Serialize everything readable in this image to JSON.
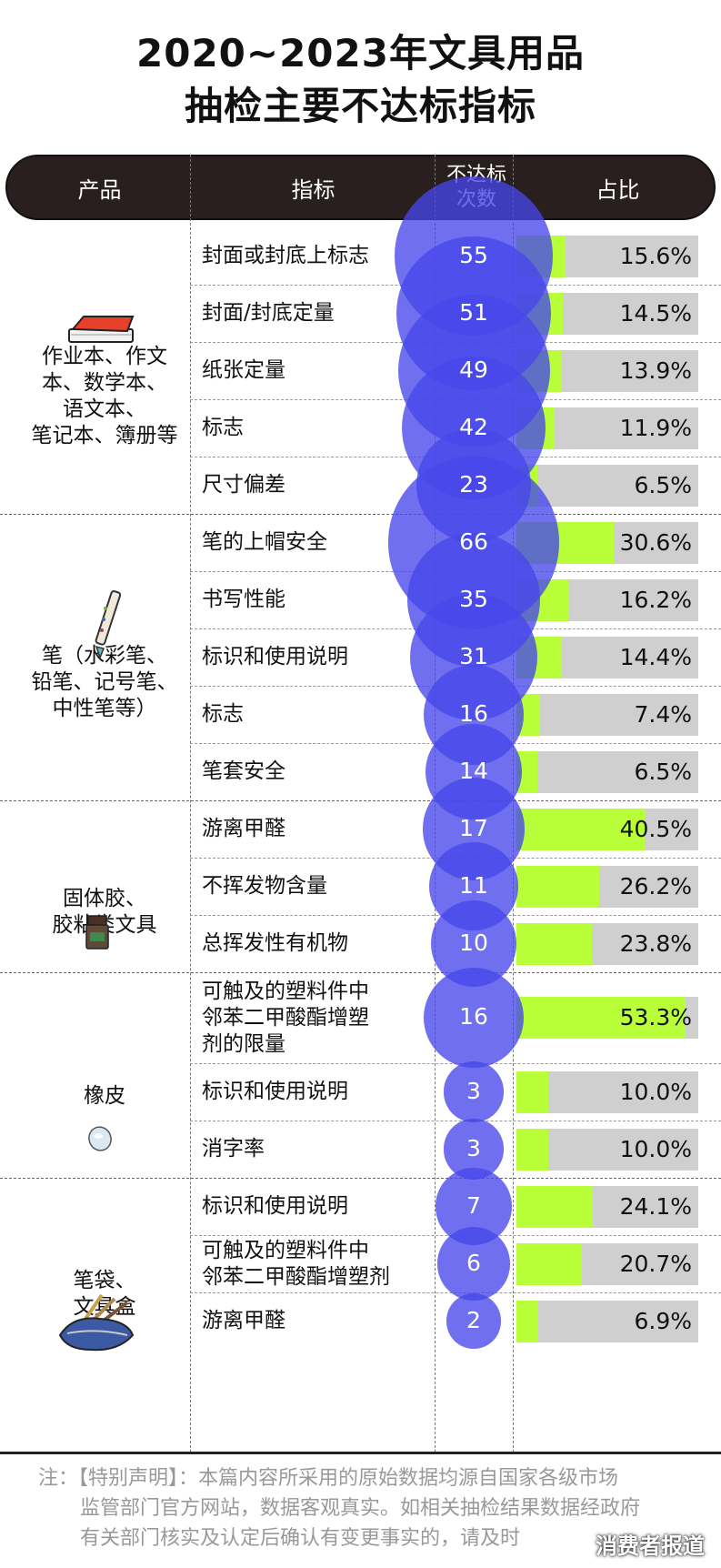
{
  "title": {
    "line1": "2020~2023年文具用品",
    "line2": "抽检主要不达标指标"
  },
  "header": {
    "product": "产品",
    "indicator": "指标",
    "count_line1": "不达标",
    "count_line2": "次数",
    "ratio": "占比"
  },
  "colors": {
    "header_bg": "#2a1f1f",
    "bubble": "#4646eb",
    "bar_fill": "#b8ff3a",
    "bar_bg": "#cfcfcf"
  },
  "chart_data": {
    "type": "table",
    "columns": [
      "产品",
      "指标",
      "不达标次数",
      "占比"
    ],
    "groups": [
      {
        "product": [
          "作业本、作文",
          "本、数学本、",
          "语文本、",
          "笔记本、簿册等"
        ],
        "icon": "notebook-icon",
        "rows": [
          {
            "indicator": [
              "封面或封底上标志"
            ],
            "count": 55,
            "ratio": 15.6,
            "label": "15.6%"
          },
          {
            "indicator": [
              "封面/封底定量"
            ],
            "count": 51,
            "ratio": 14.5,
            "label": "14.5%"
          },
          {
            "indicator": [
              "纸张定量"
            ],
            "count": 49,
            "ratio": 13.9,
            "label": "13.9%"
          },
          {
            "indicator": [
              "标志"
            ],
            "count": 42,
            "ratio": 11.9,
            "label": "11.9%"
          },
          {
            "indicator": [
              "尺寸偏差"
            ],
            "count": 23,
            "ratio": 6.5,
            "label": "6.5%"
          }
        ]
      },
      {
        "product": [
          "笔（水彩笔、",
          "铅笔、记号笔、",
          "中性笔等）"
        ],
        "icon": "pen-icon",
        "rows": [
          {
            "indicator": [
              "笔的上帽安全"
            ],
            "count": 66,
            "ratio": 30.6,
            "label": "30.6%"
          },
          {
            "indicator": [
              "书写性能"
            ],
            "count": 35,
            "ratio": 16.2,
            "label": "16.2%"
          },
          {
            "indicator": [
              "标识和使用说明"
            ],
            "count": 31,
            "ratio": 14.4,
            "label": "14.4%"
          },
          {
            "indicator": [
              "标志"
            ],
            "count": 16,
            "ratio": 7.4,
            "label": "7.4%"
          },
          {
            "indicator": [
              "笔套安全"
            ],
            "count": 14,
            "ratio": 6.5,
            "label": "6.5%"
          }
        ]
      },
      {
        "product": [
          "固体胶、",
          "胶粘类文具"
        ],
        "icon": "glue-stick-icon",
        "rows": [
          {
            "indicator": [
              "游离甲醛"
            ],
            "count": 17,
            "ratio": 40.5,
            "label": "40.5%"
          },
          {
            "indicator": [
              "不挥发物含量"
            ],
            "count": 11,
            "ratio": 26.2,
            "label": "26.2%"
          },
          {
            "indicator": [
              "总挥发性有机物"
            ],
            "count": 10,
            "ratio": 23.8,
            "label": "23.8%"
          }
        ]
      },
      {
        "product": [
          "橡皮"
        ],
        "icon": "eraser-icon",
        "rows": [
          {
            "indicator": [
              "可触及的塑料件中",
              "邻苯二甲酸酯增塑",
              "剂的限量"
            ],
            "count": 16,
            "ratio": 53.3,
            "label": "53.3%"
          },
          {
            "indicator": [
              "标识和使用说明"
            ],
            "count": 3,
            "ratio": 10.0,
            "label": "10.0%"
          },
          {
            "indicator": [
              "消字率"
            ],
            "count": 3,
            "ratio": 10.0,
            "label": "10.0%"
          }
        ]
      },
      {
        "product": [
          "笔袋、",
          "文具盒"
        ],
        "icon": "pencil-case-icon",
        "rows": [
          {
            "indicator": [
              "标识和使用说明"
            ],
            "count": 7,
            "ratio": 24.1,
            "label": "24.1%"
          },
          {
            "indicator": [
              "可触及的塑料件中",
              "邻苯二甲酸酯增塑剂"
            ],
            "count": 6,
            "ratio": 20.7,
            "label": "20.7%"
          },
          {
            "indicator": [
              "游离甲醛"
            ],
            "count": 2,
            "ratio": 6.9,
            "label": "6.9%"
          }
        ]
      }
    ]
  },
  "note": {
    "line1": "注：【特别声明】：本篇内容所采用的原始数据均源自国家各级市场",
    "line2": "监管部门官方网站，数据客观真实。如相关抽检结果数据经政府",
    "line3": "有关部门核实及认定后确认有变更事实的，请及时"
  },
  "brand": "消费者报道"
}
